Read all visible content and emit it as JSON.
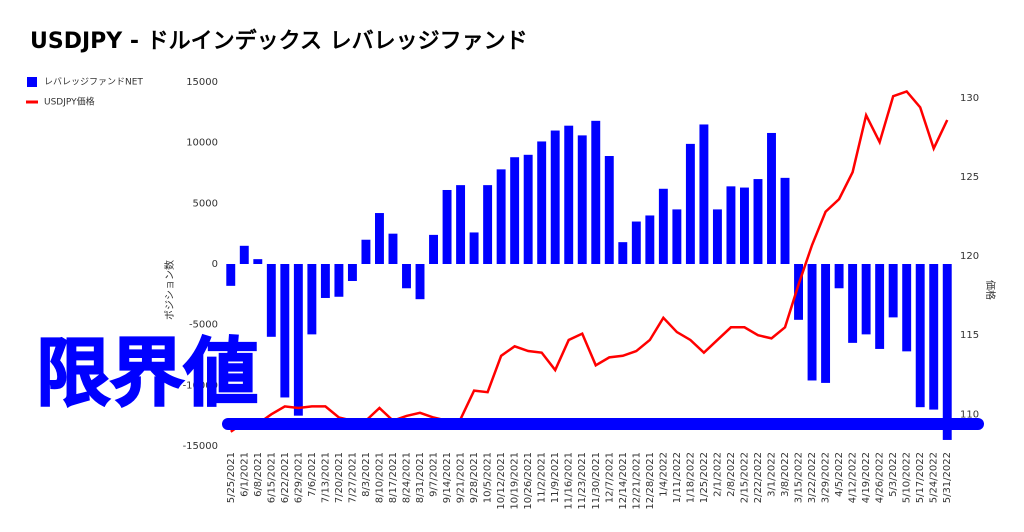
{
  "chart_data": {
    "type": "bar_line",
    "title": "USDJPY - ドルインデックス レバレッジファンド",
    "annotation": "限界値",
    "y_label": "ポジション数",
    "y2_label": "価格",
    "categories": [
      "5/25/2021",
      "6/1/2021",
      "6/8/2021",
      "6/15/2021",
      "6/22/2021",
      "6/29/2021",
      "7/6/2021",
      "7/13/2021",
      "7/20/2021",
      "7/27/2021",
      "8/3/2021",
      "8/10/2021",
      "8/17/2021",
      "8/24/2021",
      "8/31/2021",
      "9/7/2021",
      "9/14/2021",
      "9/21/2021",
      "9/28/2021",
      "10/5/2021",
      "10/12/2021",
      "10/19/2021",
      "10/26/2021",
      "11/2/2021",
      "11/9/2021",
      "11/16/2021",
      "11/23/2021",
      "11/30/2021",
      "12/7/2021",
      "12/14/2021",
      "12/21/2021",
      "12/28/2021",
      "1/4/2022",
      "1/11/2022",
      "1/18/2022",
      "1/25/2022",
      "2/1/2022",
      "2/8/2022",
      "2/15/2022",
      "2/22/2022",
      "3/1/2022",
      "3/8/2022",
      "3/15/2022",
      "3/22/2022",
      "3/29/2022",
      "4/5/2022",
      "4/12/2022",
      "4/19/2022",
      "4/26/2022",
      "5/3/2022",
      "5/10/2022",
      "5/17/2022",
      "5/24/2022",
      "5/31/2022"
    ],
    "series": [
      {
        "name": "レバレッジファンドNET",
        "color": "#0000ff",
        "values": [
          -1800,
          1500,
          400,
          -6000,
          -11000,
          -12500,
          -5800,
          -2800,
          -2700,
          -1400,
          2000,
          4200,
          2500,
          -2000,
          -2900,
          2400,
          6100,
          6500,
          2600,
          6500,
          7800,
          8800,
          9000,
          10100,
          11000,
          11400,
          10600,
          11800,
          8900,
          1800,
          3500,
          4000,
          6200,
          4500,
          9900,
          11500,
          4500,
          6400,
          6300,
          7000,
          10800,
          7100,
          -4600,
          -9600,
          -9800,
          -2000,
          -6500,
          -5800,
          -7000,
          -4400,
          -7200,
          -11800,
          -12000,
          -14500
        ]
      },
      {
        "name": "USDJPY価格",
        "color": "#ff0000",
        "axis": "y2",
        "values": [
          108.9,
          109.5,
          109.4,
          110.0,
          110.5,
          110.4,
          110.5,
          110.5,
          109.8,
          109.6,
          109.6,
          110.4,
          109.6,
          109.9,
          110.1,
          109.8,
          109.6,
          109.7,
          111.5,
          111.4,
          113.7,
          114.3,
          114.0,
          113.9,
          112.8,
          114.7,
          115.1,
          113.1,
          113.6,
          113.7,
          114.0,
          114.7,
          116.1,
          115.2,
          114.7,
          113.9,
          114.7,
          115.5,
          115.5,
          115.0,
          114.8,
          115.5,
          118.2,
          120.7,
          122.8,
          123.6,
          125.3,
          128.9,
          127.2,
          130.1,
          130.4,
          129.4,
          126.8,
          128.6
        ]
      }
    ],
    "ylim": [
      -15000,
      15000
    ],
    "yticks": [
      -15000,
      -10000,
      -5000,
      0,
      5000,
      10000,
      15000
    ],
    "y2lim": [
      108,
      131
    ],
    "y2ticks": [
      110,
      115,
      120,
      125,
      130
    ],
    "legend": "top-left"
  }
}
